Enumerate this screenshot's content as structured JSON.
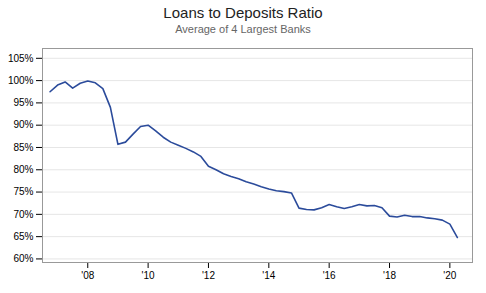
{
  "chart_data": {
    "type": "line",
    "title": "Loans to Deposits Ratio",
    "subtitle": "Average of 4 Largest Banks",
    "color": "#2B4B9B",
    "x": [
      2006.75,
      2007.0,
      2007.25,
      2007.5,
      2007.75,
      2008.0,
      2008.25,
      2008.5,
      2008.75,
      2009.0,
      2009.25,
      2009.5,
      2009.75,
      2010.0,
      2010.25,
      2010.5,
      2010.75,
      2011.0,
      2011.25,
      2011.5,
      2011.75,
      2012.0,
      2012.25,
      2012.5,
      2012.75,
      2013.0,
      2013.25,
      2013.5,
      2013.75,
      2014.0,
      2014.25,
      2014.5,
      2014.75,
      2015.0,
      2015.25,
      2015.5,
      2015.75,
      2016.0,
      2016.25,
      2016.5,
      2016.75,
      2017.0,
      2017.25,
      2017.5,
      2017.75,
      2018.0,
      2018.25,
      2018.5,
      2018.75,
      2019.0,
      2019.25,
      2019.5,
      2019.75,
      2020.0,
      2020.25
    ],
    "values": [
      0.975,
      0.99,
      0.997,
      0.983,
      0.994,
      0.999,
      0.995,
      0.982,
      0.94,
      0.857,
      0.862,
      0.88,
      0.897,
      0.9,
      0.887,
      0.873,
      0.862,
      0.855,
      0.848,
      0.84,
      0.83,
      0.808,
      0.8,
      0.791,
      0.785,
      0.78,
      0.773,
      0.768,
      0.762,
      0.757,
      0.753,
      0.751,
      0.748,
      0.714,
      0.711,
      0.71,
      0.715,
      0.722,
      0.717,
      0.713,
      0.717,
      0.722,
      0.719,
      0.72,
      0.715,
      0.696,
      0.694,
      0.698,
      0.695,
      0.695,
      0.692,
      0.69,
      0.687,
      0.678,
      0.648
    ],
    "xlim": [
      2006.5,
      2020.75
    ],
    "ylim": [
      0.592,
      1.072
    ],
    "xticks": [
      {
        "value": 2008,
        "label": "'08"
      },
      {
        "value": 2010,
        "label": "'10"
      },
      {
        "value": 2012,
        "label": "'12"
      },
      {
        "value": 2014,
        "label": "'14"
      },
      {
        "value": 2016,
        "label": "'16"
      },
      {
        "value": 2018,
        "label": "'18"
      },
      {
        "value": 2020,
        "label": "'20"
      }
    ],
    "yticks": [
      {
        "value": 0.6,
        "label": "60%"
      },
      {
        "value": 0.65,
        "label": "65%"
      },
      {
        "value": 0.7,
        "label": "70%"
      },
      {
        "value": 0.75,
        "label": "75%"
      },
      {
        "value": 0.8,
        "label": "80%"
      },
      {
        "value": 0.85,
        "label": "85%"
      },
      {
        "value": 0.9,
        "label": "90%"
      },
      {
        "value": 0.95,
        "label": "95%"
      },
      {
        "value": 1.0,
        "label": "100%"
      },
      {
        "value": 1.05,
        "label": "105%"
      }
    ],
    "grid": "y"
  }
}
